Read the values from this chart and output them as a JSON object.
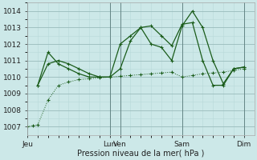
{
  "xlabel": "Pression niveau de la mer( hPa )",
  "ylim": [
    1006.5,
    1014.5
  ],
  "yticks": [
    1007,
    1008,
    1009,
    1010,
    1011,
    1012,
    1013,
    1014
  ],
  "bg_color": "#cce8e8",
  "grid_color_minor": "#b8d8d8",
  "grid_color_major": "#99bbbb",
  "line_color": "#1a5c1a",
  "font_size": 6.5,
  "xlim": [
    0,
    22
  ],
  "xtick_positions": [
    0,
    8,
    9,
    15,
    21
  ],
  "xtick_labels": [
    "Jeu",
    "Lun",
    "Ven",
    "Sam",
    "Dim"
  ],
  "vline_positions": [
    0,
    8,
    9,
    15,
    21
  ],
  "line1_style": ":",
  "line2_style": "-",
  "line3_style": "-",
  "line1_x": [
    0,
    0.5,
    1,
    2,
    3,
    4,
    5,
    6,
    7,
    8,
    9,
    10,
    11,
    12,
    13,
    14,
    15,
    16,
    17,
    18,
    19,
    20,
    21
  ],
  "line1_y": [
    1007.0,
    1007.05,
    1007.1,
    1008.6,
    1009.5,
    1009.7,
    1009.85,
    1009.9,
    1009.95,
    1010.0,
    1010.05,
    1010.1,
    1010.15,
    1010.2,
    1010.25,
    1010.3,
    1010.0,
    1010.1,
    1010.2,
    1010.25,
    1010.3,
    1010.4,
    1010.5
  ],
  "line2_x": [
    1,
    2,
    3,
    4,
    5,
    6,
    7,
    8,
    9,
    10,
    11,
    12,
    13,
    14,
    15,
    16,
    17,
    18,
    19,
    20,
    21
  ],
  "line2_y": [
    1009.5,
    1010.8,
    1011.0,
    1010.8,
    1010.5,
    1010.2,
    1010.0,
    1010.0,
    1010.5,
    1012.2,
    1013.0,
    1013.1,
    1012.5,
    1011.9,
    1013.2,
    1013.3,
    1011.0,
    1009.5,
    1009.5,
    1010.5,
    1010.6
  ],
  "line3_x": [
    1,
    2,
    3,
    4,
    5,
    6,
    7,
    8,
    9,
    10,
    11,
    12,
    13,
    14,
    15,
    16,
    17,
    18,
    19,
    20,
    21
  ],
  "line3_y": [
    1009.5,
    1011.5,
    1010.8,
    1010.5,
    1010.2,
    1010.0,
    1010.0,
    1010.0,
    1012.0,
    1012.5,
    1013.0,
    1012.0,
    1011.8,
    1011.0,
    1013.1,
    1014.0,
    1013.0,
    1011.0,
    1009.6,
    1010.5,
    1010.6
  ]
}
